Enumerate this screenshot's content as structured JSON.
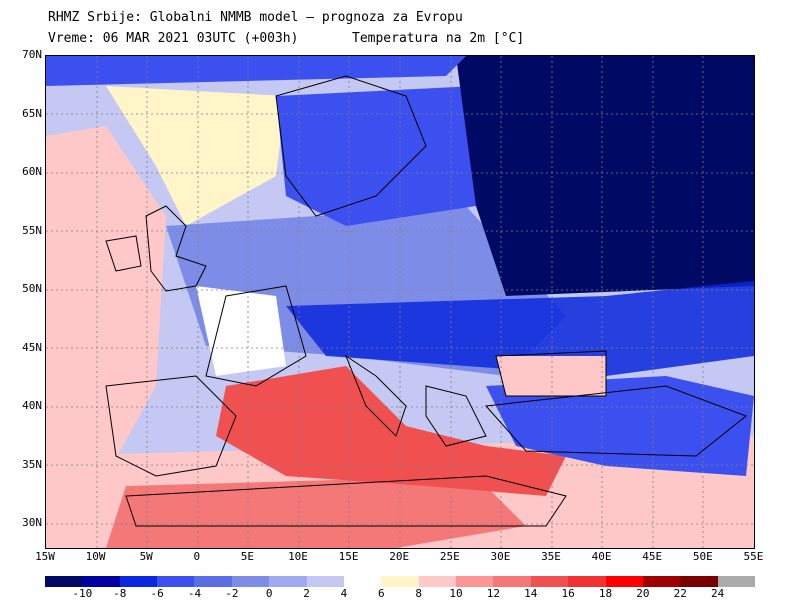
{
  "header": {
    "title": "RHMZ Srbije: Globalni NMMB model — prognoza za Evropu",
    "time": "Vreme: 06 MAR 2021 03UTC (+003h)",
    "variable": "Temperatura na 2m [°C]"
  },
  "axes": {
    "lat_labels": [
      "70N",
      "65N",
      "60N",
      "55N",
      "50N",
      "45N",
      "40N",
      "35N",
      "30N"
    ],
    "lon_labels": [
      "15W",
      "10W",
      "5W",
      "0",
      "5E",
      "10E",
      "15E",
      "20E",
      "25E",
      "30E",
      "35E",
      "40E",
      "45E",
      "50E",
      "55E"
    ]
  },
  "legend": {
    "colors": [
      "#000a64",
      "#0000a0",
      "#0a28dc",
      "#3c50f0",
      "#5a6ee6",
      "#7d8ce6",
      "#a0aaf0",
      "#c4c8f2",
      "#ffffff",
      "#fff5c8",
      "#ffc8c8",
      "#ff9696",
      "#f57878",
      "#f05050",
      "#f03232",
      "#ff0000",
      "#a00000",
      "#780000",
      "#aaaaaa"
    ],
    "labels": [
      "-10",
      "-8",
      "-6",
      "-4",
      "-2",
      "0",
      "2",
      "4",
      "6",
      "8",
      "10",
      "12",
      "14",
      "16",
      "18",
      "20",
      "22",
      "24"
    ]
  },
  "palette": {
    "deep_cold": "#000a64",
    "cold": "#0a28dc",
    "cool": "#5a6ee6",
    "mild_cold": "#a0aaf0",
    "neutral": "#ffffff",
    "warm_light": "#fff5c8",
    "warm": "#ffc8c8",
    "hot": "#f57878",
    "very_hot": "#f03232"
  }
}
